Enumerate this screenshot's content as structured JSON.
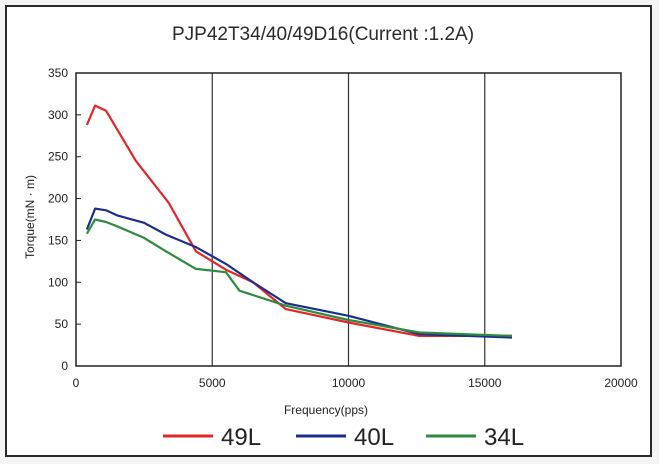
{
  "chart_data": {
    "type": "line",
    "title": "PJP42T34/40/49D16(Current :1.2A)",
    "xlabel": "Frequency(pps)",
    "ylabel": "Torque(mN · m)",
    "xlim": [
      0,
      20000
    ],
    "ylim": [
      0,
      350
    ],
    "x_ticks": [
      0,
      5000,
      10000,
      15000,
      20000
    ],
    "y_ticks": [
      0,
      50,
      100,
      150,
      200,
      250,
      300,
      350
    ],
    "grid": "vertical",
    "legend_position": "bottom",
    "series": [
      {
        "name": "49L",
        "color": "#e3262a",
        "x": [
          400,
          700,
          1100,
          2200,
          3400,
          4400,
          5500,
          6500,
          7700,
          10000,
          12600,
          16000
        ],
        "y": [
          288,
          311,
          305,
          245,
          195,
          137,
          115,
          100,
          68,
          52,
          36,
          36
        ]
      },
      {
        "name": "40L",
        "color": "#1c2e8c",
        "x": [
          400,
          700,
          1100,
          1500,
          2500,
          3300,
          4400,
          5500,
          6500,
          7700,
          10000,
          12600,
          16000
        ],
        "y": [
          163,
          188,
          186,
          180,
          171,
          157,
          142,
          122,
          100,
          75,
          60,
          38,
          34
        ]
      },
      {
        "name": "34L",
        "color": "#2e8b3e",
        "x": [
          400,
          700,
          1100,
          1500,
          2500,
          3300,
          4400,
          5500,
          6000,
          7700,
          10000,
          12600,
          16000
        ],
        "y": [
          158,
          175,
          172,
          167,
          153,
          137,
          116,
          112,
          90,
          72,
          55,
          40,
          36
        ]
      }
    ]
  }
}
